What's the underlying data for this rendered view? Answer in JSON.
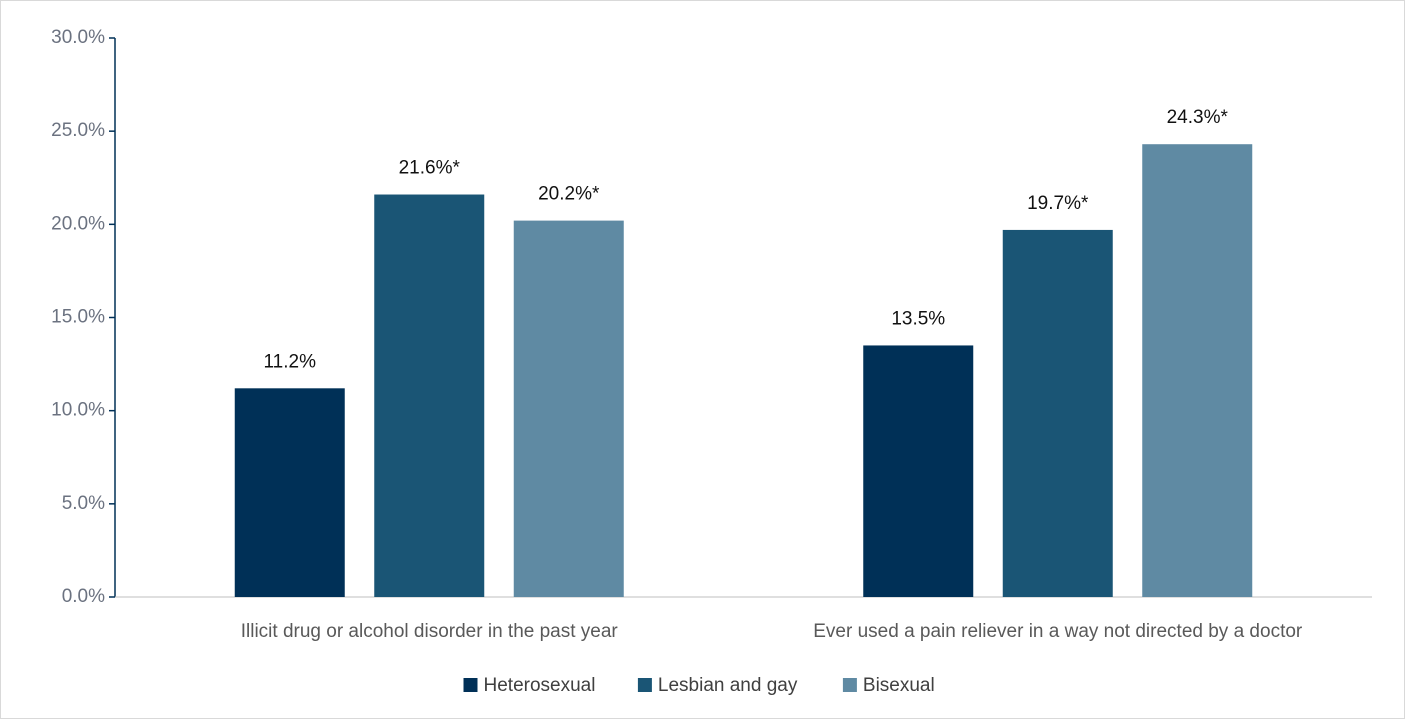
{
  "chart_data": {
    "type": "bar",
    "categories": [
      "Illicit drug or alcohol disorder in the past year",
      "Ever used a pain reliever in a way not directed by a doctor"
    ],
    "series": [
      {
        "name": "Heterosexual",
        "color": "#003057",
        "values": [
          11.2,
          13.5
        ],
        "value_labels": [
          "11.2%",
          "13.5%"
        ]
      },
      {
        "name": "Lesbian and gay",
        "color": "#1a5575",
        "values": [
          21.6,
          19.7
        ],
        "value_labels": [
          "21.6%*",
          "19.7%*"
        ]
      },
      {
        "name": "Bisexual",
        "color": "#5f8aa3",
        "values": [
          20.2,
          24.3
        ],
        "value_labels": [
          "20.2%*",
          "24.3%*"
        ]
      }
    ],
    "ylim": [
      0,
      30
    ],
    "yticks": [
      {
        "value": 0,
        "label": "0.0%"
      },
      {
        "value": 5,
        "label": "5.0%"
      },
      {
        "value": 10,
        "label": "10.0%"
      },
      {
        "value": 15,
        "label": "15.0%"
      },
      {
        "value": 20,
        "label": "20.0%"
      },
      {
        "value": 25,
        "label": "25.0%"
      },
      {
        "value": 30,
        "label": "30.0%"
      }
    ],
    "legend": "bottom"
  }
}
